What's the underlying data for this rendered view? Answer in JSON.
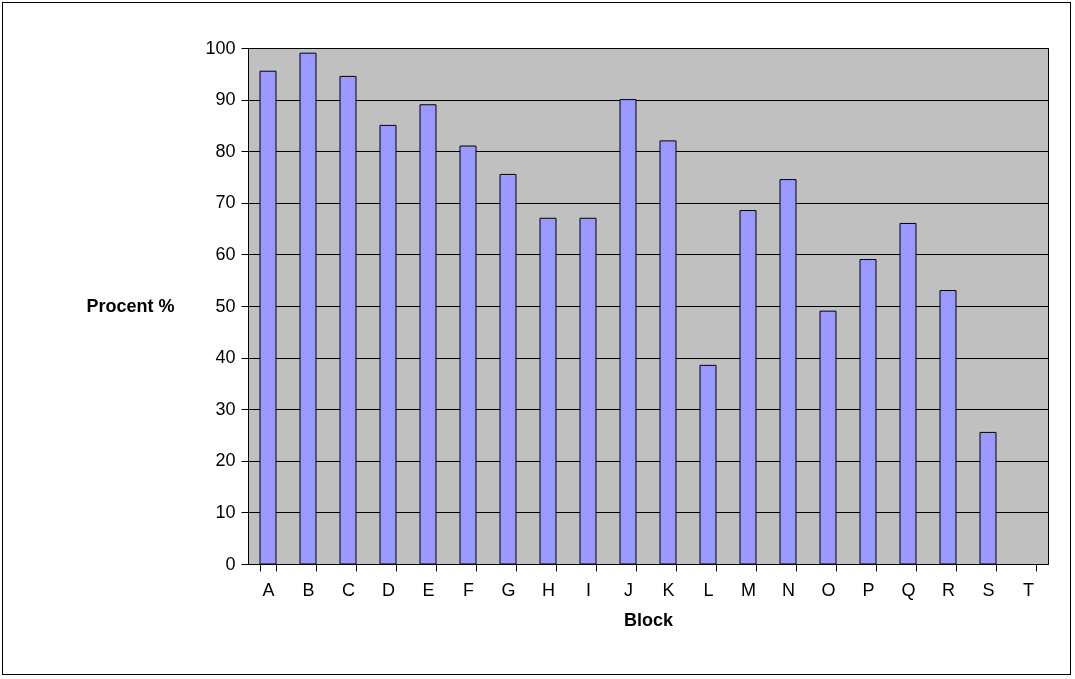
{
  "chart_data": {
    "type": "bar",
    "xlabel": "Block",
    "ylabel": "Procent %",
    "categories": [
      "A",
      "B",
      "C",
      "D",
      "E",
      "F",
      "G",
      "H",
      "I",
      "J",
      "K",
      "L",
      "M",
      "N",
      "O",
      "P",
      "Q",
      "R",
      "S",
      "T"
    ],
    "values": [
      95.5,
      99,
      94.5,
      85,
      89,
      81,
      75.5,
      67,
      67,
      90,
      82,
      38.5,
      68.5,
      74.5,
      49,
      59,
      66,
      53,
      25.5,
      null
    ],
    "color": "#9999ff",
    "ylim": [
      0,
      100
    ],
    "yticks": [
      0,
      10,
      20,
      30,
      40,
      50,
      60,
      70,
      80,
      90,
      100
    ],
    "grid": "y"
  }
}
